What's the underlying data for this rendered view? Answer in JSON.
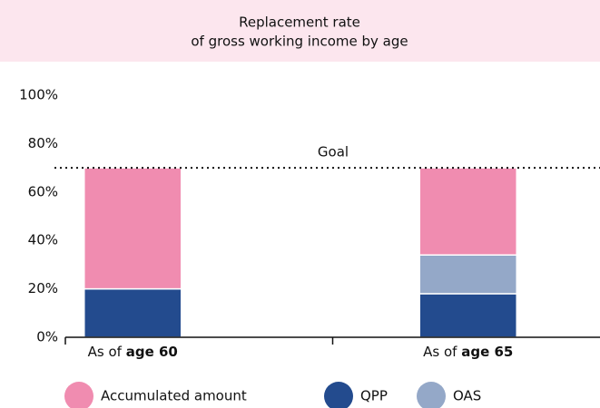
{
  "chart_data": {
    "type": "stacked-bar",
    "title": [
      "Replacement rate",
      "of gross working income by age"
    ],
    "categories": [
      "As of age 60",
      "As of age 65"
    ],
    "series": [
      {
        "name": "QPP",
        "color": "#234b8e",
        "values": [
          20,
          18
        ]
      },
      {
        "name": "OAS",
        "color": "#94a8c8",
        "values": [
          0,
          16
        ]
      },
      {
        "name": "Accumulated amount",
        "color": "#f08cb0",
        "values": [
          50,
          36
        ]
      }
    ],
    "ylim": [
      0,
      100
    ],
    "yticks": [
      {
        "value": 0,
        "label": "0%"
      },
      {
        "value": 20,
        "label": "20%"
      },
      {
        "value": 40,
        "label": "40%"
      },
      {
        "value": 60,
        "label": "60%"
      },
      {
        "value": 80,
        "label": "80%"
      },
      {
        "value": 100,
        "label": "100%"
      }
    ],
    "goal": {
      "value": 70,
      "label": "Goal"
    },
    "grid": false
  }
}
